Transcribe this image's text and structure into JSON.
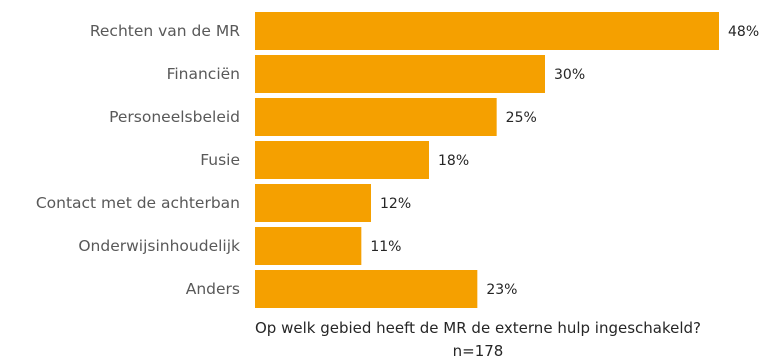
{
  "chart_data": {
    "type": "bar",
    "orientation": "horizontal",
    "categories": [
      "Rechten van de MR",
      "Financiën",
      "Personeelsbeleid",
      "Fusie",
      "Contact met de achterban",
      "Onderwijsinhoudelijk",
      "Anders"
    ],
    "values": [
      48,
      30,
      25,
      18,
      12,
      11,
      23
    ],
    "value_labels": [
      "48%",
      "30%",
      "25%",
      "18%",
      "12%",
      "11%",
      "23%"
    ],
    "xlim": [
      0,
      48
    ],
    "grid": false,
    "legend": "none",
    "bar_color": "#F5A000",
    "title": "",
    "xlabel": "Op welk gebied heeft de MR de externe hulp ingeschakeld?",
    "subtitle": "n=178"
  }
}
